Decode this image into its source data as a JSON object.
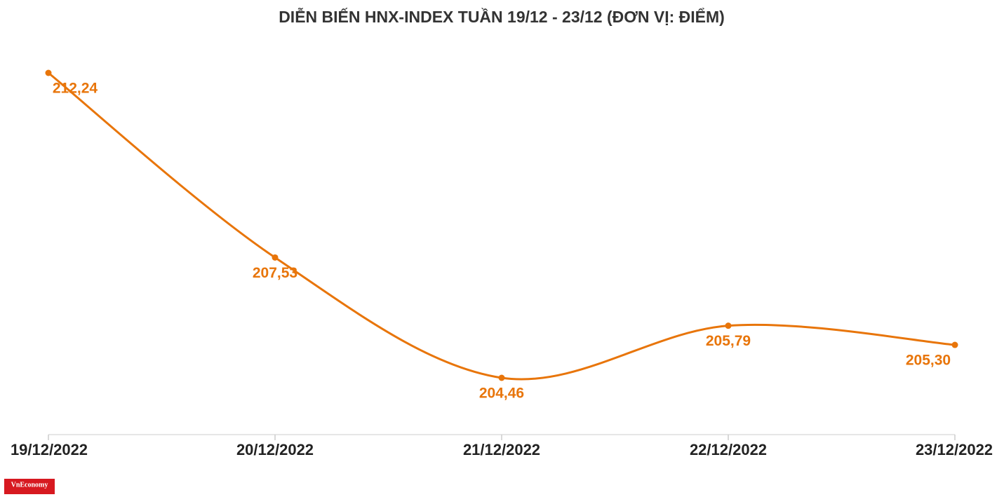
{
  "chart_data": {
    "type": "line",
    "title": "DIỄN BIẾN HNX-INDEX TUẦN 19/12 - 23/12 (ĐƠN VỊ: ĐIỂM)",
    "categories": [
      "19/12/2022",
      "20/12/2022",
      "21/12/2022",
      "22/12/2022",
      "23/12/2022"
    ],
    "series": [
      {
        "name": "HNX-Index",
        "color": "#e8750a",
        "values": [
          212.24,
          207.53,
          204.46,
          205.79,
          205.3
        ],
        "value_labels": [
          "212,24",
          "207,53",
          "204,46",
          "205,79",
          "205,30"
        ]
      }
    ],
    "logo": "VnEconomy"
  }
}
